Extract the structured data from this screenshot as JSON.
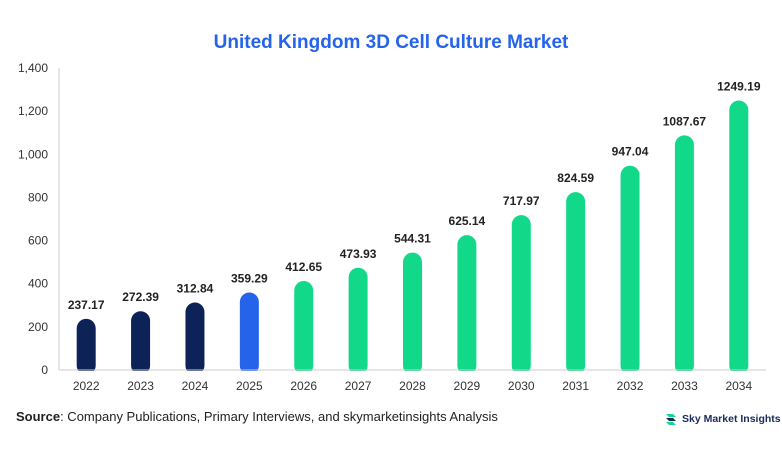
{
  "chart_data": {
    "type": "bar",
    "title": "United Kingdom 3D Cell Culture Market",
    "categories": [
      "2022",
      "2023",
      "2024",
      "2025",
      "2026",
      "2027",
      "2028",
      "2029",
      "2030",
      "2031",
      "2032",
      "2033",
      "2034"
    ],
    "values": [
      237.17,
      272.39,
      312.84,
      359.29,
      412.65,
      473.93,
      544.31,
      625.14,
      717.97,
      824.59,
      947.04,
      1087.67,
      1249.19
    ],
    "value_labels": [
      "237.17",
      "272.39",
      "312.84",
      "359.29",
      "412.65",
      "473.93",
      "544.31",
      "625.14",
      "717.97",
      "824.59",
      "947.04",
      "1087.67",
      "1249.19"
    ],
    "bar_colors": [
      "#0d2257",
      "#0d2257",
      "#0d2257",
      "#2563eb",
      "#12d98a",
      "#12d98a",
      "#12d98a",
      "#12d98a",
      "#12d98a",
      "#12d98a",
      "#12d98a",
      "#12d98a",
      "#12d98a"
    ],
    "yticks": [
      0,
      200,
      400,
      600,
      800,
      1000,
      1200,
      1400
    ],
    "ytick_labels": [
      "0",
      "200",
      "400",
      "600",
      "800",
      "1,000",
      "1,200",
      "1,400"
    ],
    "ylim": [
      0,
      1400
    ],
    "xlabel": "",
    "ylabel": "",
    "grid": false
  },
  "footer": {
    "source_label": "Source",
    "source_text": ": Company Publications, Primary Interviews, and skymarketinsights Analysis"
  },
  "brand": {
    "name": "Sky Market Insights",
    "icon": "sky-market-insights-logo-icon",
    "colors": {
      "dark": "#1a2b5c",
      "green": "#12d98a"
    }
  },
  "colors": {
    "title": "#2563eb",
    "axis": "#cccccc",
    "label": "#333333"
  }
}
